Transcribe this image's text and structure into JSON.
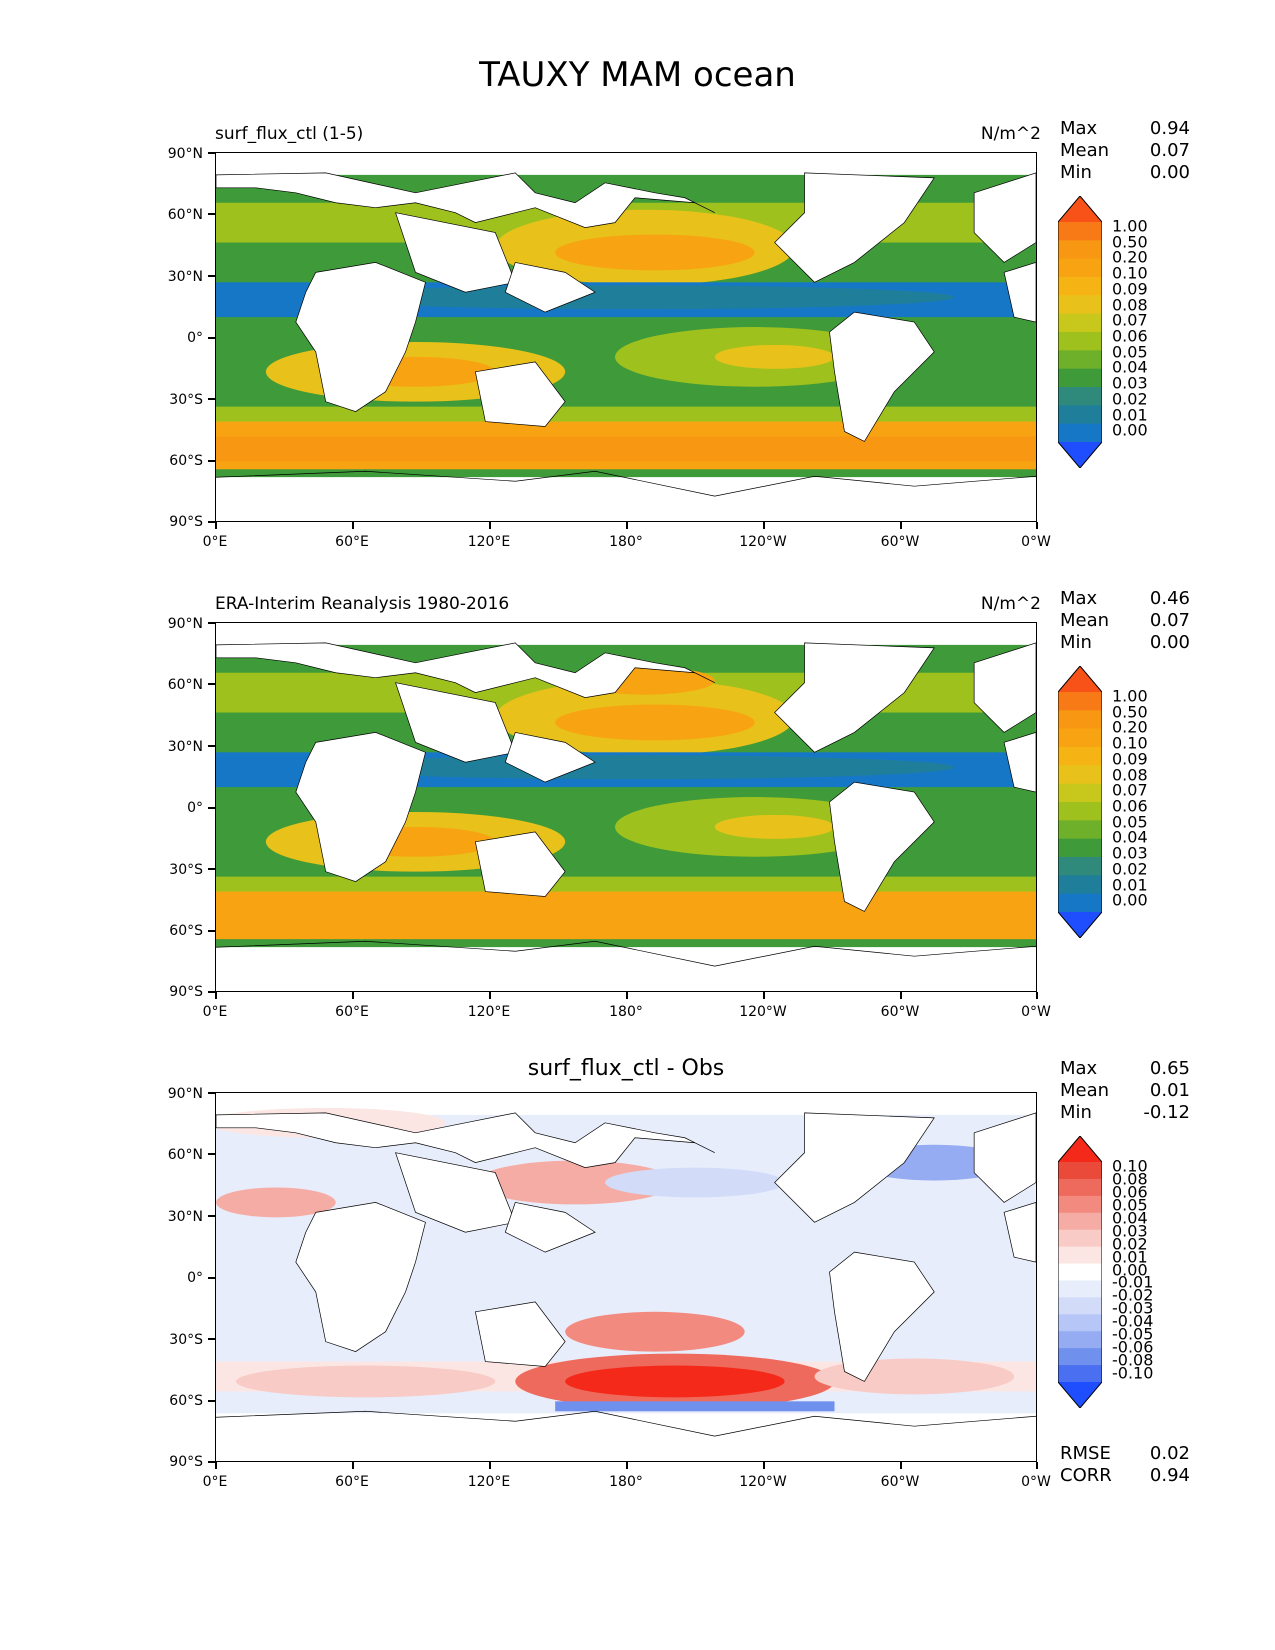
{
  "figure": {
    "title": "TAUXY MAM ocean"
  },
  "axes": {
    "y_ticks": [
      "90°N",
      "60°N",
      "30°N",
      "0°",
      "30°S",
      "60°S",
      "90°S"
    ],
    "x_ticks": [
      "0°E",
      "60°E",
      "120°E",
      "180°",
      "120°W",
      "60°W",
      "0°W"
    ]
  },
  "colors": {
    "seq": [
      "#1f4eff",
      "#1777c7",
      "#1f7f9a",
      "#2f8a7c",
      "#3f9a3a",
      "#6fb02b",
      "#9ec11e",
      "#c8c81c",
      "#e8c21a",
      "#f5b414",
      "#f8a412",
      "#f89712",
      "#f77a16",
      "#f95218"
    ],
    "div": [
      "#1f4eff",
      "#4a6ff0",
      "#7090ee",
      "#95acf2",
      "#b6c6f6",
      "#d2dcf9",
      "#e8edfb",
      "#ffffff",
      "#fbe6e4",
      "#f8cbc6",
      "#f5aca4",
      "#f28a80",
      "#ee6a5c",
      "#ea4a3a",
      "#f5291a"
    ]
  },
  "panels": [
    {
      "id": "model",
      "subtitle_left": "surf_flux_ctl (1-5)",
      "units": "N/m^2",
      "stats": [
        {
          "name": "Max",
          "value": "0.94"
        },
        {
          "name": "Mean",
          "value": "0.07"
        },
        {
          "name": "Min",
          "value": "0.00"
        }
      ],
      "colorbar_labels": [
        "1.00",
        "0.50",
        "0.20",
        "0.10",
        "0.09",
        "0.08",
        "0.07",
        "0.06",
        "0.05",
        "0.04",
        "0.03",
        "0.02",
        "0.01",
        "0.00"
      ]
    },
    {
      "id": "obs",
      "subtitle_left": "ERA-Interim Reanalysis 1980-2016",
      "units": "N/m^2",
      "stats": [
        {
          "name": "Max",
          "value": "0.46"
        },
        {
          "name": "Mean",
          "value": "0.07"
        },
        {
          "name": "Min",
          "value": "0.00"
        }
      ],
      "colorbar_labels": [
        "1.00",
        "0.50",
        "0.20",
        "0.10",
        "0.09",
        "0.08",
        "0.07",
        "0.06",
        "0.05",
        "0.04",
        "0.03",
        "0.02",
        "0.01",
        "0.00"
      ]
    },
    {
      "id": "diff",
      "subtitle_center": "surf_flux_ctl - Obs",
      "stats": [
        {
          "name": "Max",
          "value": "0.65"
        },
        {
          "name": "Mean",
          "value": "0.01"
        },
        {
          "name": "Min",
          "value": "-0.12"
        }
      ],
      "colorbar_labels": [
        "0.10",
        "0.08",
        "0.06",
        "0.05",
        "0.04",
        "0.03",
        "0.02",
        "0.01",
        "0.00",
        "-0.01",
        "-0.02",
        "-0.03",
        "-0.04",
        "-0.05",
        "-0.06",
        "-0.08",
        "-0.10"
      ],
      "bottom_stats": [
        {
          "name": "RMSE",
          "value": "0.02"
        },
        {
          "name": "CORR",
          "value": "0.94"
        }
      ]
    }
  ]
}
